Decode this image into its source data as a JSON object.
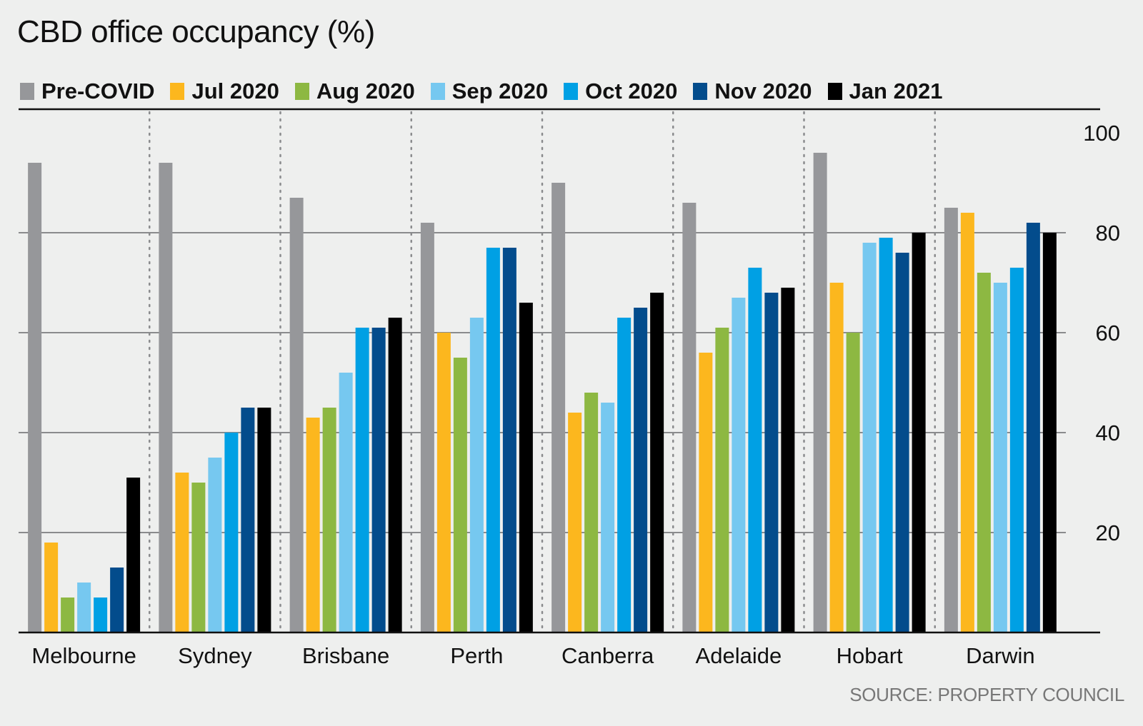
{
  "chart_data": {
    "type": "bar",
    "title": "CBD office occupancy (%)",
    "source": "SOURCE: PROPERTY COUNCIL",
    "categories": [
      "Melbourne",
      "Sydney",
      "Brisbane",
      "Perth",
      "Canberra",
      "Adelaide",
      "Hobart",
      "Darwin"
    ],
    "series": [
      {
        "name": "Pre-COVID",
        "color": "#96979a",
        "values": [
          94,
          94,
          87,
          82,
          90,
          86,
          96,
          85
        ]
      },
      {
        "name": "Jul 2020",
        "color": "#fcb71e",
        "values": [
          18,
          32,
          43,
          60,
          44,
          56,
          70,
          84
        ]
      },
      {
        "name": "Aug 2020",
        "color": "#8db842",
        "values": [
          7,
          30,
          45,
          55,
          48,
          61,
          60,
          72
        ]
      },
      {
        "name": "Sep 2020",
        "color": "#76c8f0",
        "values": [
          10,
          35,
          52,
          63,
          46,
          67,
          78,
          70
        ]
      },
      {
        "name": "Oct 2020",
        "color": "#00a0e4",
        "values": [
          7,
          40,
          61,
          77,
          63,
          73,
          79,
          73
        ]
      },
      {
        "name": "Nov 2020",
        "color": "#034c8c",
        "values": [
          13,
          45,
          61,
          77,
          65,
          68,
          76,
          82
        ]
      },
      {
        "name": "Jan 2021",
        "color": "#000000",
        "values": [
          31,
          45,
          63,
          66,
          68,
          69,
          80,
          80
        ]
      }
    ],
    "ylim": [
      0,
      100
    ],
    "yticks": [
      20,
      40,
      60,
      80,
      100
    ],
    "grid": true,
    "legend_position": "top-left",
    "y_axis_side": "right"
  }
}
